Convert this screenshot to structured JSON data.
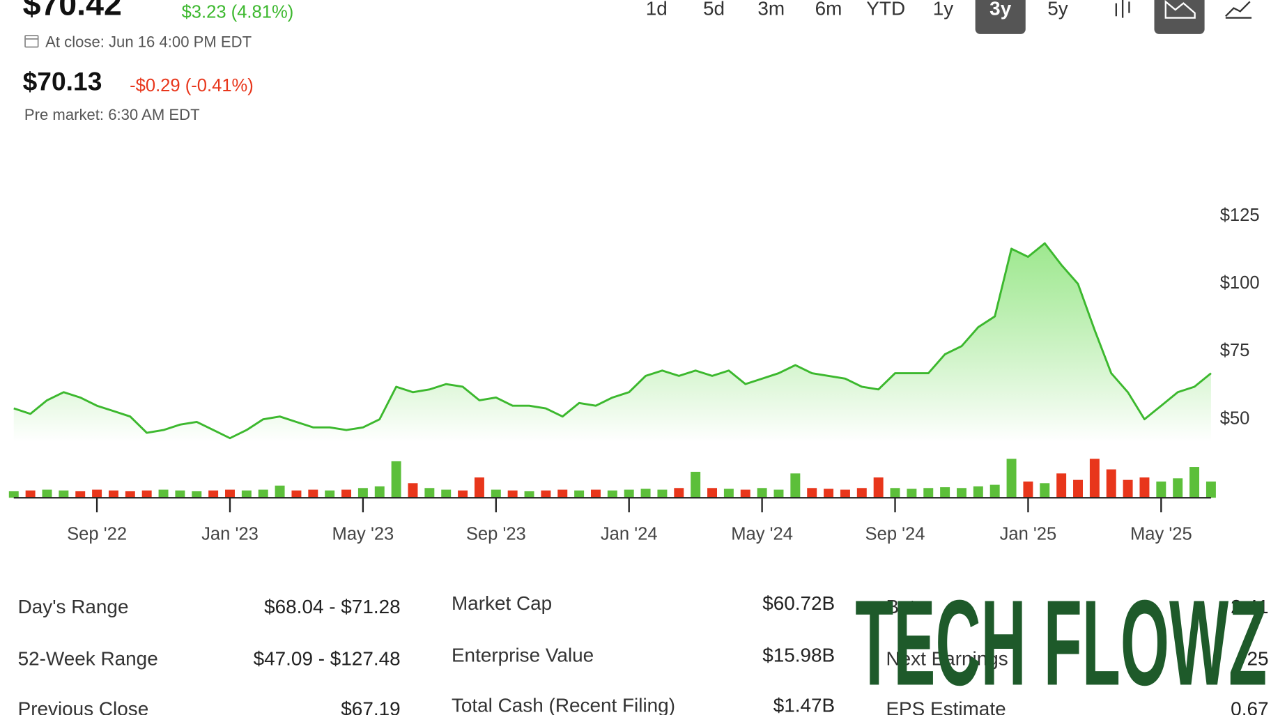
{
  "header": {
    "price": "$70.42",
    "change": "$3.23 (4.81%)",
    "close_note": "At close: Jun 16 4:00 PM EDT",
    "pre_price": "$70.13",
    "pre_change": "-$0.29 (-0.41%)",
    "pre_note": "Pre market: 6:30 AM EDT"
  },
  "ranges": {
    "items": [
      "1d",
      "5d",
      "3m",
      "6m",
      "YTD",
      "1y",
      "3y",
      "5y"
    ],
    "selected": "3y"
  },
  "chart_data": {
    "type": "line",
    "categories": [
      null,
      null,
      null,
      null,
      null,
      "Sep '22",
      null,
      null,
      null,
      null,
      null,
      null,
      null,
      "Jan '23",
      null,
      null,
      null,
      null,
      null,
      null,
      null,
      "May '23",
      null,
      null,
      null,
      null,
      null,
      null,
      null,
      "Sep '23",
      null,
      null,
      null,
      null,
      null,
      null,
      null,
      "Jan '24",
      null,
      null,
      null,
      null,
      null,
      null,
      null,
      "May '24",
      null,
      null,
      null,
      null,
      null,
      null,
      null,
      "Sep '24",
      null,
      null,
      null,
      null,
      null,
      null,
      null,
      "Jan '25",
      null,
      null,
      null,
      null,
      null,
      null,
      null,
      "May '25",
      null,
      null,
      null
    ],
    "series": [
      {
        "color": "#3cb82e",
        "values": [
          54,
          52,
          57,
          60,
          58,
          55,
          53,
          51,
          45,
          46,
          48,
          49,
          46,
          43,
          46,
          50,
          51,
          49,
          47,
          47,
          46,
          47,
          50,
          62,
          60,
          61,
          63,
          62,
          57,
          58,
          55,
          55,
          54,
          51,
          56,
          55,
          58,
          60,
          66,
          68,
          66,
          68,
          66,
          68,
          63,
          65,
          67,
          70,
          67,
          66,
          65,
          62,
          61,
          67,
          67,
          67,
          74,
          77,
          84,
          88,
          113,
          110,
          115,
          107,
          100,
          83,
          67,
          60,
          50,
          55,
          60,
          62,
          67
        ]
      }
    ],
    "volume": [
      8,
      9,
      10,
      9,
      8,
      10,
      9,
      8,
      9,
      10,
      9,
      8,
      9,
      10,
      9,
      10,
      15,
      9,
      10,
      9,
      10,
      12,
      14,
      45,
      18,
      12,
      10,
      9,
      25,
      10,
      9,
      8,
      9,
      10,
      9,
      10,
      9,
      10,
      11,
      10,
      12,
      32,
      12,
      11,
      10,
      12,
      10,
      30,
      12,
      11,
      10,
      12,
      25,
      12,
      11,
      12,
      13,
      12,
      14,
      16,
      48,
      20,
      18,
      30,
      22,
      48,
      35,
      22,
      25,
      20,
      24,
      38,
      20
    ],
    "volume_lim": [
      0,
      100
    ],
    "up_color": "#5cbf3a",
    "down_color": "#e8361b",
    "ylim": [
      21,
      133
    ],
    "yticks": [
      {
        "value": 50,
        "label": "$50"
      },
      {
        "value": 75,
        "label": "$75"
      },
      {
        "value": 100,
        "label": "$100"
      },
      {
        "value": 125,
        "label": "$125"
      }
    ]
  },
  "stats": {
    "columns": [
      [
        {
          "label": "Day's Range",
          "value": "$68.04 - $71.28"
        },
        {
          "label": "52-Week Range",
          "value": "$47.09 - $127.48"
        },
        {
          "label": "Previous Close",
          "value": "$67.19"
        }
      ],
      [
        {
          "label": "Market Cap",
          "value": "$60.72B"
        },
        {
          "label": "Enterprise Value",
          "value": "$15.98B"
        },
        {
          "label": "Total Cash (Recent Filing)",
          "value": "$1.47B"
        }
      ],
      [
        {
          "label": "Beta",
          "value": "2.41"
        },
        {
          "label": "Next Earnings",
          "value": "25"
        },
        {
          "label": "EPS Estimate",
          "value": "0.67"
        }
      ]
    ]
  },
  "watermark": "TECH FLOWZ"
}
